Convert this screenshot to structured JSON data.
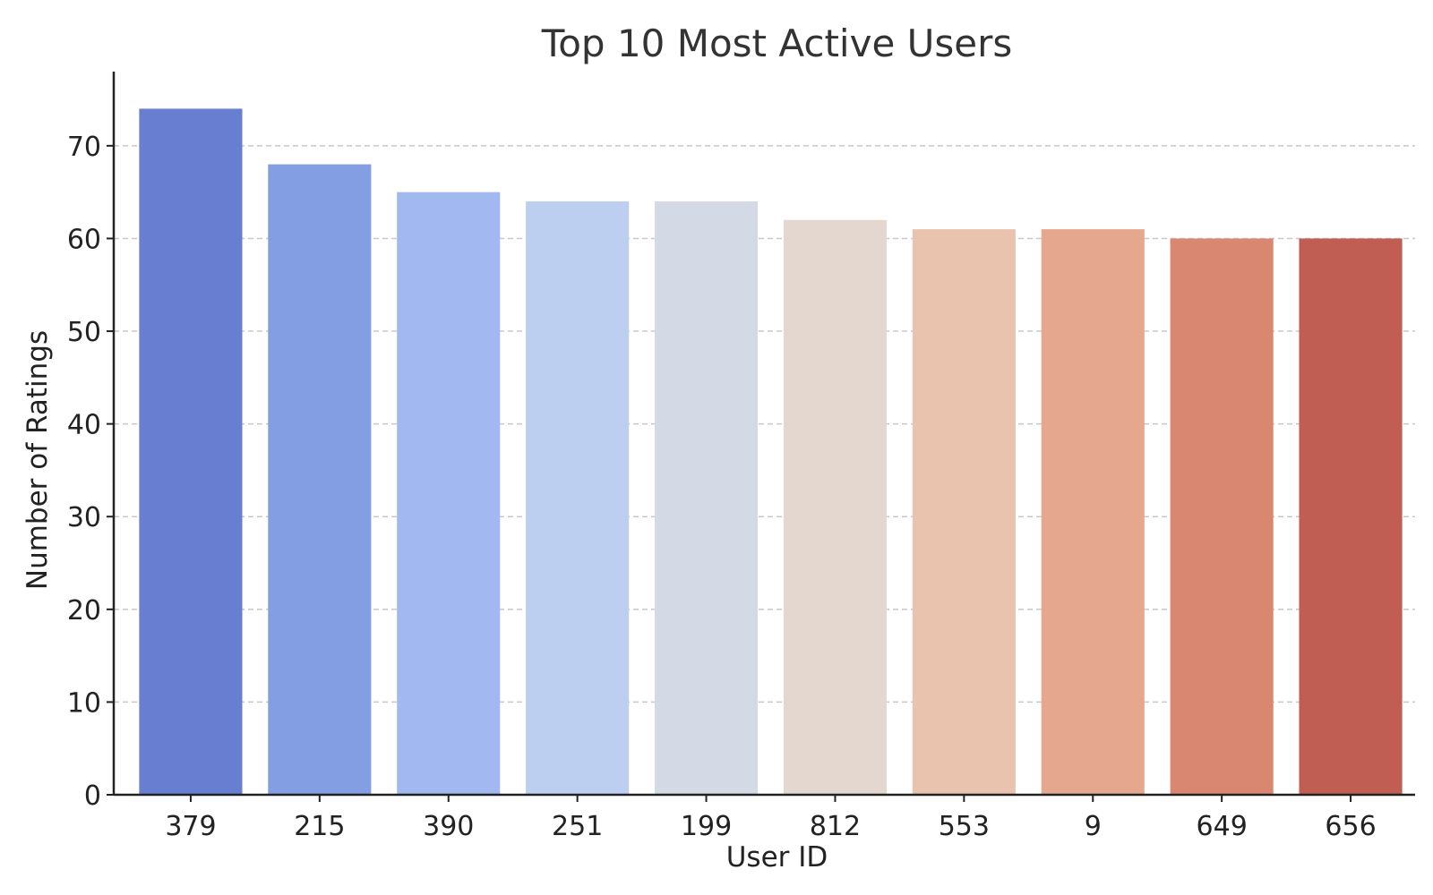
{
  "chart_data": {
    "type": "bar",
    "title": "Top 10 Most Active Users",
    "xlabel": "User ID",
    "ylabel": "Number of Ratings",
    "categories": [
      "379",
      "215",
      "390",
      "251",
      "199",
      "812",
      "553",
      "9",
      "649",
      "656"
    ],
    "values": [
      74,
      68,
      65,
      64,
      64,
      62,
      61,
      61,
      60,
      60
    ],
    "colors": [
      "#687ed0",
      "#849ee3",
      "#a1b8f1",
      "#bdcff1",
      "#d4d9e6",
      "#e3d7cf",
      "#eac3af",
      "#e5a78e",
      "#d98771",
      "#c05e53"
    ],
    "ylim": [
      0,
      78
    ],
    "yticks": [
      0,
      10,
      20,
      30,
      40,
      50,
      60,
      70
    ],
    "ytick_labels": [
      "0",
      "10",
      "20",
      "30",
      "40",
      "50",
      "60",
      "70"
    ],
    "grid": "y-dashed",
    "legend": "none"
  }
}
